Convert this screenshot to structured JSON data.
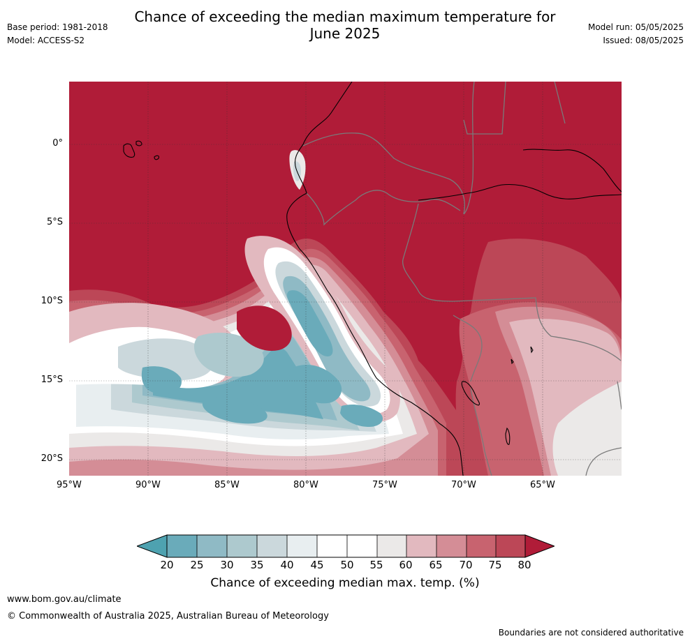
{
  "header": {
    "title_line1": "Chance of exceeding the median maximum temperature for",
    "title_line2": "June 2025",
    "base_period": "Base period: 1981-2018",
    "model": "Model: ACCESS-S2",
    "model_run": "Model run: 05/05/2025",
    "issued": "Issued: 08/05/2025"
  },
  "map": {
    "lat_labels": [
      "0°",
      "5°S",
      "10°S",
      "15°S",
      "20°S"
    ],
    "lon_labels": [
      "95°W",
      "90°W",
      "85°W",
      "80°W",
      "75°W",
      "70°W",
      "65°W"
    ],
    "colors": {
      "c_below20": "#4ea2b0",
      "c20": "#6aabba",
      "c25": "#8fbac5",
      "c30": "#adc9ce",
      "c35": "#cbd8dc",
      "c40": "#e8eef0",
      "c45": "#ffffff",
      "c50": "#ffffff",
      "c55": "#ebe9e8",
      "c60": "#e2b9bf",
      "c65": "#d48d96",
      "c70": "#c8636f",
      "c75": "#bc4757",
      "c80": "#b01c38"
    }
  },
  "colorbar": {
    "ticks": [
      "20",
      "25",
      "30",
      "35",
      "40",
      "45",
      "50",
      "55",
      "60",
      "65",
      "70",
      "75",
      "80"
    ],
    "label": "Chance of exceeding median max. temp. (%)"
  },
  "footer": {
    "url": "www.bom.gov.au/climate",
    "copyright": "© Commonwealth of Australia 2025, Australian Bureau of Meteorology",
    "disclaimer": "Boundaries are not considered authoritative"
  }
}
